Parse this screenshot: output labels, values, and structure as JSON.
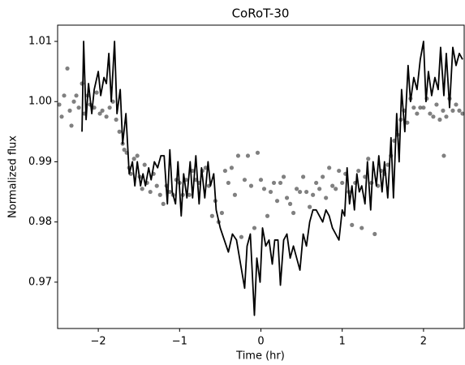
{
  "chart_data": {
    "type": "scatter",
    "title": "CoRoT-30",
    "x_label": "Time (hr)",
    "y_label": "Normalized flux",
    "xlim": [
      -2.5,
      2.5
    ],
    "ylim": [
      0.9623,
      1.0127
    ],
    "xticks": [
      {
        "value": -2,
        "label": "−2"
      },
      {
        "value": -1,
        "label": "−1"
      },
      0,
      1,
      2
    ],
    "yticks": [
      0.97,
      0.98,
      0.99,
      {
        "value": 1.0,
        "label": "1.00"
      },
      1.01
    ],
    "grid": false,
    "series": [
      {
        "mode": "markers",
        "color": "#555555",
        "x": [
          -2.48,
          -2.45,
          -2.42,
          -2.38,
          -2.35,
          -2.33,
          -2.3,
          -2.27,
          -2.24,
          -2.2,
          -2.17,
          -2.13,
          -2.1,
          -2.05,
          -2.02,
          -1.98,
          -1.95,
          -1.9,
          -1.86,
          -1.82,
          -1.78,
          -1.74,
          -1.7,
          -1.68,
          -1.65,
          -1.62,
          -1.6,
          -1.56,
          -1.52,
          -1.49,
          -1.46,
          -1.43,
          -1.4,
          -1.36,
          -1.32,
          -1.28,
          -1.24,
          -1.2,
          -1.16,
          -1.12,
          -1.08,
          -1.04,
          -1.0,
          -0.96,
          -0.92,
          -0.88,
          -0.84,
          -0.8,
          -0.76,
          -0.72,
          -0.68,
          -0.64,
          -0.6,
          -0.56,
          -0.52,
          -0.48,
          -0.44,
          -0.4,
          -0.36,
          -0.32,
          -0.28,
          -0.24,
          -0.2,
          -0.16,
          -0.12,
          -0.08,
          -0.04,
          0.0,
          0.04,
          0.08,
          0.12,
          0.16,
          0.2,
          0.24,
          0.28,
          0.32,
          0.36,
          0.4,
          0.44,
          0.48,
          0.52,
          0.56,
          0.6,
          0.64,
          0.68,
          0.72,
          0.76,
          0.8,
          0.84,
          0.88,
          0.92,
          0.96,
          1.0,
          1.04,
          1.08,
          1.12,
          1.16,
          1.2,
          1.24,
          1.28,
          1.32,
          1.36,
          1.4,
          1.44,
          1.48,
          1.52,
          1.56,
          1.6,
          1.64,
          1.68,
          1.72,
          1.76,
          1.8,
          1.84,
          1.88,
          1.92,
          1.96,
          2.0,
          2.04,
          2.08,
          2.12,
          2.16,
          2.2,
          2.24,
          2.28,
          2.32,
          2.36,
          2.4,
          2.44,
          2.48,
          2.25
        ],
        "values": [
          0.9995,
          0.9975,
          1.001,
          1.0055,
          0.9985,
          0.996,
          1.0,
          1.001,
          0.999,
          1.003,
          0.998,
          1.001,
          0.9995,
          0.999,
          1.0015,
          0.998,
          0.9985,
          0.9975,
          0.999,
          1.0,
          0.997,
          0.995,
          0.993,
          0.992,
          0.9915,
          0.989,
          0.988,
          0.9905,
          0.991,
          0.9875,
          0.9855,
          0.9895,
          0.9865,
          0.985,
          0.988,
          0.986,
          0.9845,
          0.983,
          0.986,
          0.985,
          0.9845,
          0.987,
          0.9865,
          0.9845,
          0.987,
          0.9845,
          0.9885,
          0.987,
          0.9865,
          0.9885,
          0.989,
          0.986,
          0.981,
          0.9835,
          0.98,
          0.9815,
          0.9885,
          0.9865,
          0.989,
          0.9845,
          0.991,
          0.9775,
          0.987,
          0.991,
          0.986,
          0.979,
          0.9915,
          0.987,
          0.9855,
          0.981,
          0.985,
          0.9865,
          0.9835,
          0.9865,
          0.9875,
          0.984,
          0.983,
          0.9815,
          0.9855,
          0.985,
          0.9875,
          0.985,
          0.9825,
          0.9845,
          0.9865,
          0.9855,
          0.9875,
          0.984,
          0.989,
          0.986,
          0.9855,
          0.9885,
          0.9865,
          0.988,
          0.985,
          0.9795,
          0.9865,
          0.9885,
          0.979,
          0.9875,
          0.9905,
          0.9865,
          0.978,
          0.986,
          0.9885,
          0.988,
          0.9895,
          0.991,
          0.9935,
          0.9945,
          0.997,
          0.9985,
          0.9965,
          1.0005,
          0.999,
          0.998,
          0.999,
          0.999,
          1.0005,
          0.998,
          0.9975,
          0.9995,
          0.997,
          0.9985,
          0.9975,
          1.0005,
          0.9985,
          0.9995,
          0.9985,
          0.998,
          0.991
        ]
      },
      {
        "mode": "lines",
        "color": "#000000",
        "x": [
          -2.2,
          -2.18,
          -2.15,
          -2.12,
          -2.08,
          -2.05,
          -2.0,
          -1.97,
          -1.93,
          -1.9,
          -1.87,
          -1.84,
          -1.8,
          -1.77,
          -1.73,
          -1.7,
          -1.66,
          -1.62,
          -1.58,
          -1.55,
          -1.52,
          -1.48,
          -1.45,
          -1.42,
          -1.38,
          -1.35,
          -1.31,
          -1.27,
          -1.23,
          -1.19,
          -1.15,
          -1.12,
          -1.09,
          -1.05,
          -1.02,
          -0.98,
          -0.95,
          -0.91,
          -0.87,
          -0.84,
          -0.8,
          -0.76,
          -0.73,
          -0.69,
          -0.65,
          -0.62,
          -0.58,
          -0.55,
          -0.5,
          -0.45,
          -0.4,
          -0.35,
          -0.3,
          -0.25,
          -0.2,
          -0.17,
          -0.13,
          -0.08,
          -0.05,
          -0.01,
          0.02,
          0.06,
          0.1,
          0.14,
          0.17,
          0.21,
          0.24,
          0.28,
          0.32,
          0.36,
          0.4,
          0.44,
          0.48,
          0.52,
          0.56,
          0.6,
          0.64,
          0.68,
          0.72,
          0.76,
          0.8,
          0.84,
          0.88,
          0.92,
          0.96,
          1.0,
          1.03,
          1.06,
          1.09,
          1.12,
          1.15,
          1.18,
          1.21,
          1.24,
          1.28,
          1.31,
          1.35,
          1.38,
          1.42,
          1.45,
          1.49,
          1.52,
          1.56,
          1.6,
          1.63,
          1.67,
          1.7,
          1.73,
          1.77,
          1.81,
          1.84,
          1.88,
          1.92,
          1.96,
          2.0,
          2.03,
          2.06,
          2.1,
          2.14,
          2.18,
          2.21,
          2.25,
          2.28,
          2.32,
          2.36,
          2.4,
          2.44,
          2.48
        ],
        "values": [
          0.995,
          1.01,
          0.997,
          1.003,
          0.998,
          1.002,
          1.005,
          1.001,
          1.004,
          1.003,
          1.008,
          1.0,
          1.01,
          0.998,
          1.002,
          0.993,
          0.998,
          0.988,
          0.99,
          0.986,
          0.99,
          0.986,
          0.988,
          0.986,
          0.989,
          0.987,
          0.99,
          0.989,
          0.991,
          0.991,
          0.983,
          0.992,
          0.985,
          0.983,
          0.99,
          0.981,
          0.988,
          0.984,
          0.99,
          0.984,
          0.991,
          0.983,
          0.989,
          0.984,
          0.99,
          0.986,
          0.988,
          0.982,
          0.979,
          0.977,
          0.975,
          0.978,
          0.977,
          0.973,
          0.969,
          0.976,
          0.978,
          0.9645,
          0.974,
          0.97,
          0.979,
          0.976,
          0.977,
          0.973,
          0.977,
          0.977,
          0.9695,
          0.977,
          0.978,
          0.974,
          0.976,
          0.974,
          0.972,
          0.978,
          0.976,
          0.98,
          0.982,
          0.982,
          0.981,
          0.98,
          0.982,
          0.981,
          0.979,
          0.978,
          0.977,
          0.982,
          0.981,
          0.989,
          0.983,
          0.986,
          0.982,
          0.988,
          0.985,
          0.986,
          0.983,
          0.99,
          0.982,
          0.99,
          0.986,
          0.991,
          0.985,
          0.99,
          0.984,
          0.994,
          0.984,
          0.998,
          0.99,
          1.002,
          0.995,
          1.006,
          1.0,
          1.004,
          1.002,
          1.007,
          1.01,
          1.0,
          1.005,
          1.001,
          1.004,
          1.002,
          1.009,
          1.001,
          1.008,
          0.999,
          1.009,
          1.006,
          1.008,
          1.007
        ]
      }
    ]
  }
}
